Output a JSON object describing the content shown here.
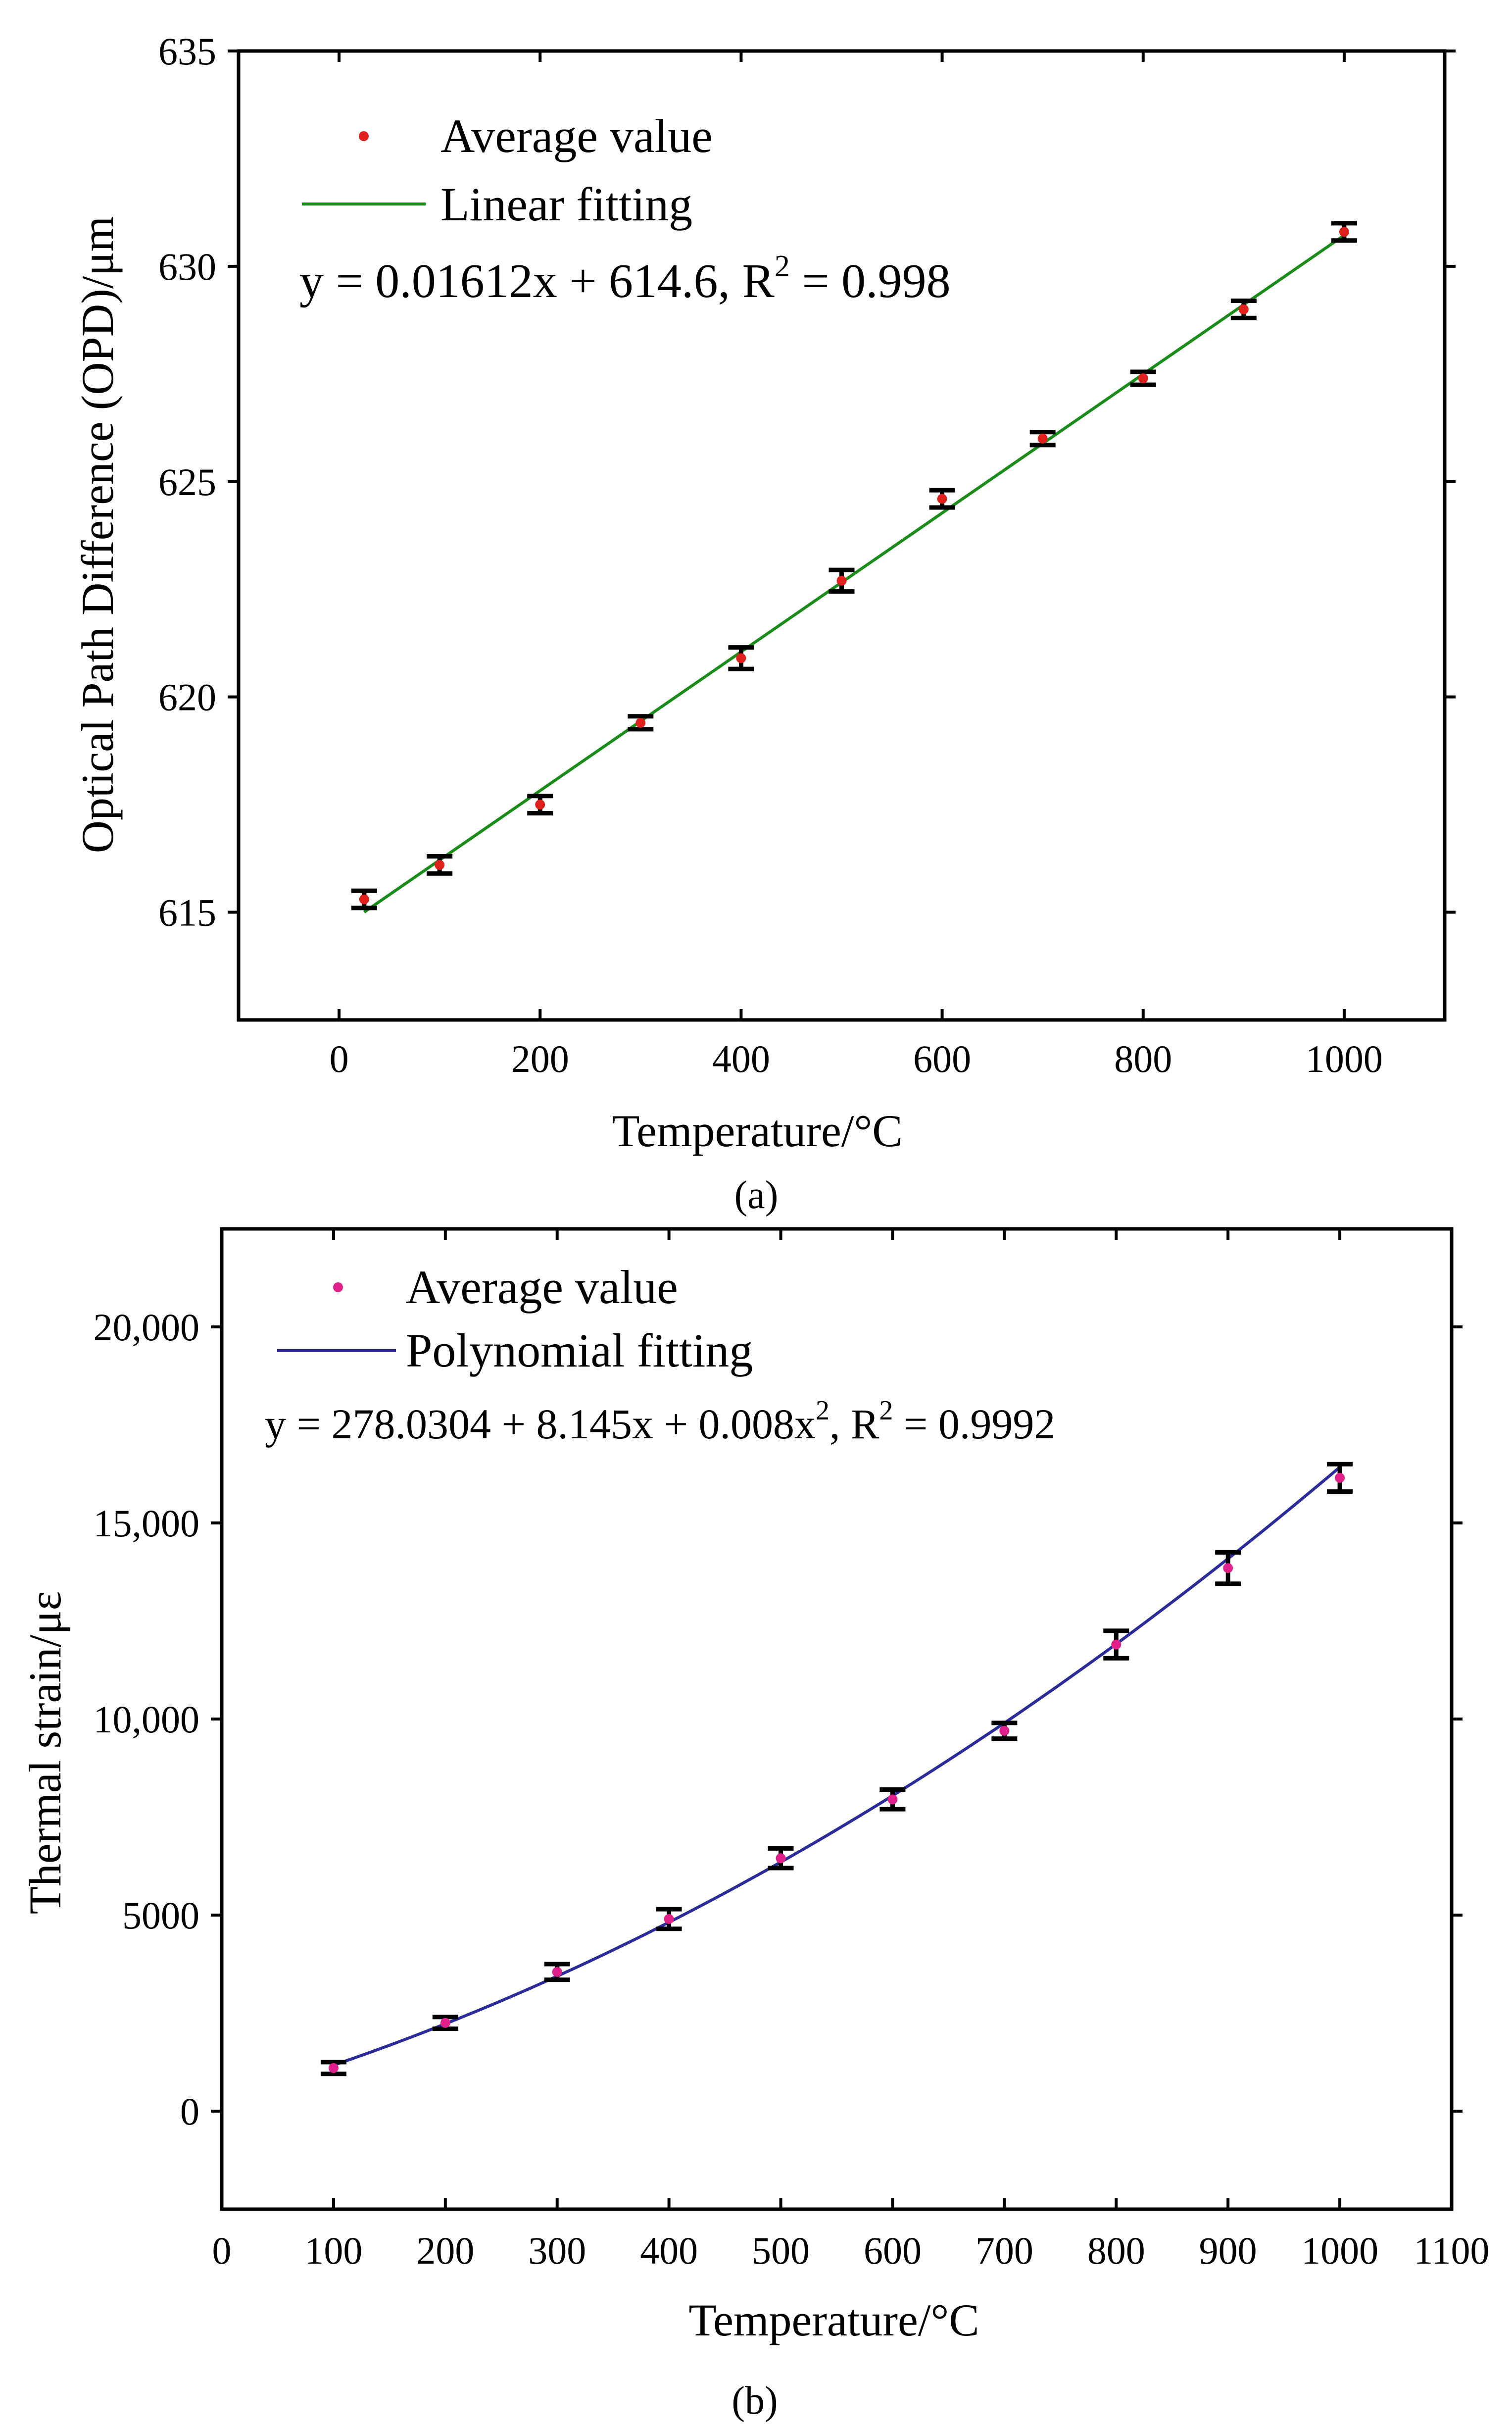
{
  "chart_data": [
    {
      "type": "scatter",
      "panel_label": "(a)",
      "title": "",
      "xlabel": "Temperature/°C",
      "ylabel": "Optical Path Difference (OPD)/μm",
      "xlim": [
        -100,
        1100
      ],
      "ylim": [
        612.5,
        635
      ],
      "xticks": [
        0,
        200,
        400,
        600,
        800,
        1000
      ],
      "xtick_labels": [
        "0",
        "200",
        "400",
        "600",
        "800",
        "1000"
      ],
      "yticks": [
        615,
        620,
        625,
        630,
        635
      ],
      "ytick_labels": [
        "615",
        "620",
        "625",
        "630",
        "635"
      ],
      "series": [
        {
          "name": "Average value",
          "kind": "points",
          "color": "#e0201c",
          "x": [
            25,
            100,
            200,
            300,
            400,
            500,
            600,
            700,
            800,
            900,
            1000
          ],
          "y": [
            615.3,
            616.1,
            617.5,
            619.4,
            620.9,
            622.7,
            624.6,
            626.0,
            627.4,
            629.0,
            630.8
          ],
          "err": [
            0.2,
            0.2,
            0.2,
            0.15,
            0.25,
            0.25,
            0.2,
            0.15,
            0.15,
            0.2,
            0.2
          ]
        },
        {
          "name": "Linear fitting",
          "kind": "line",
          "color": "#1a8c1a",
          "x": [
            25,
            1000
          ],
          "y": [
            615.003,
            630.72
          ]
        }
      ],
      "legend": [
        "Average value",
        "Linear fitting"
      ],
      "legend_position": "top-left",
      "equation": {
        "main": "y = 0.01612x + 614.6, R",
        "sup": "2",
        "tail": " = 0.998"
      }
    },
    {
      "type": "scatter",
      "panel_label": "(b)",
      "title": "",
      "xlabel": "Temperature/°C",
      "ylabel": "Thermal strain/με",
      "xlim": [
        0,
        1100
      ],
      "ylim": [
        -2500,
        22500
      ],
      "xticks": [
        0,
        100,
        200,
        300,
        400,
        500,
        600,
        700,
        800,
        900,
        1000,
        1100
      ],
      "xtick_labels": [
        "0",
        "100",
        "200",
        "300",
        "400",
        "500",
        "600",
        "700",
        "800",
        "900",
        "1000",
        "1100"
      ],
      "yticks": [
        0,
        5000,
        10000,
        15000,
        20000
      ],
      "ytick_labels": [
        "0",
        "5000",
        "10,000",
        "15,000",
        "20,000"
      ],
      "series": [
        {
          "name": "Average value",
          "kind": "points",
          "color": "#e0208a",
          "x": [
            100,
            200,
            300,
            400,
            500,
            600,
            700,
            800,
            900,
            1000
          ],
          "y": [
            1100,
            2250,
            3550,
            4900,
            6450,
            7950,
            9700,
            11900,
            13850,
            16150
          ],
          "err": [
            150,
            150,
            200,
            250,
            250,
            250,
            200,
            350,
            400,
            350
          ]
        },
        {
          "name": "Polynomial fitting",
          "kind": "curve",
          "color": "#2b2b9a",
          "coefficients": [
            278.0304,
            8.145,
            0.008
          ],
          "x_range": [
            100,
            1000
          ]
        }
      ],
      "legend": [
        "Average value",
        "Polynomial fitting"
      ],
      "legend_position": "top-left",
      "equation": {
        "main": "y = 278.0304 + 8.145x + 0.008x",
        "sup1": "2",
        "mid": ", R",
        "sup2": "2",
        "tail": " = 0.9992"
      }
    }
  ]
}
